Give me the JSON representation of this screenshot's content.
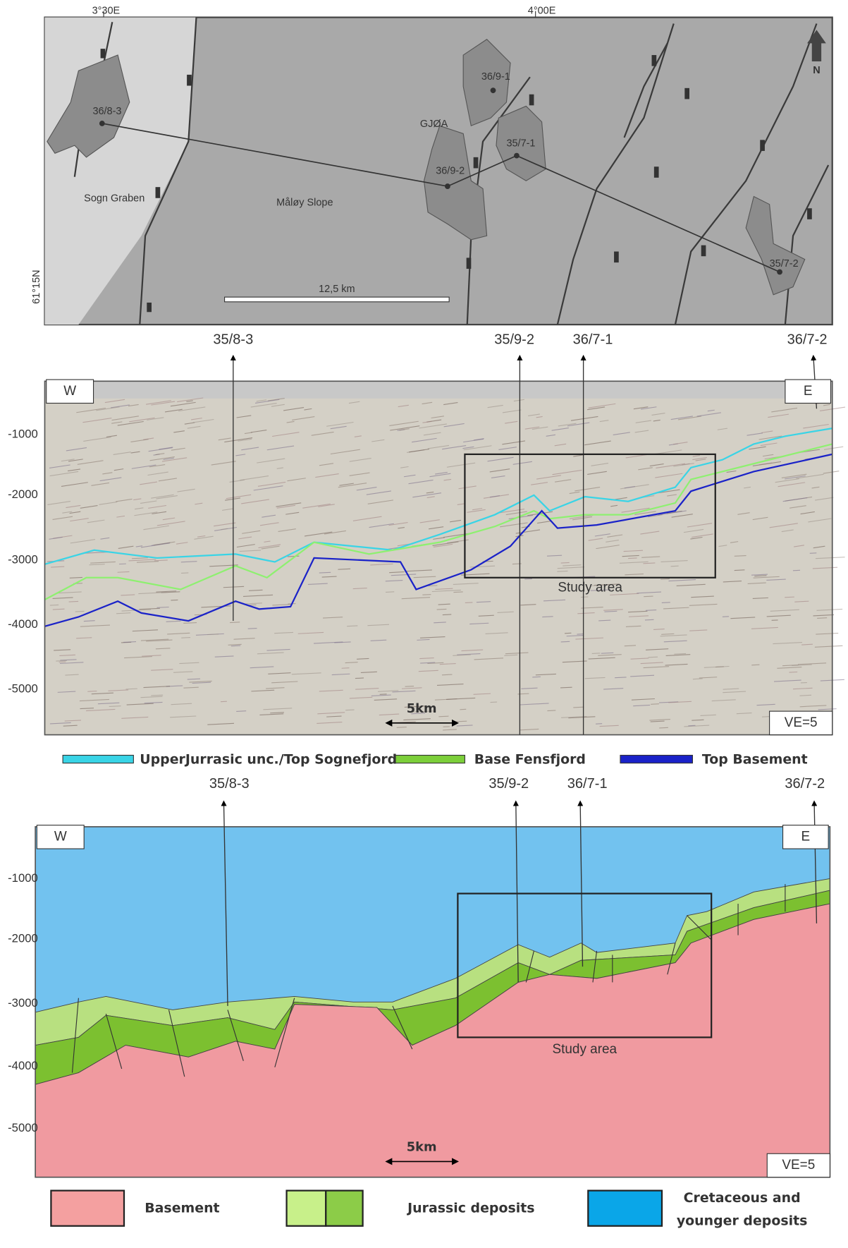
{
  "map": {
    "lon_labels": [
      "3°30E",
      "4°00E"
    ],
    "lat_label": "61°15N",
    "north": "N",
    "wells": [
      "36/8-3",
      "36/9-1",
      "36/9-2",
      "35/7-1",
      "35/7-2"
    ],
    "field": "GJØA",
    "areas": [
      "Sogn Graben",
      "Måløy Slope"
    ],
    "scale": "12,5 km"
  },
  "seismic": {
    "wells": [
      "35/8-3",
      "35/9-2",
      "36/7-1",
      "36/7-2"
    ],
    "west": "W",
    "east": "E",
    "depths": [
      "-1000",
      "-2000",
      "-3000",
      "-4000",
      "-5000"
    ],
    "study_area": "Study area",
    "scale": "5km",
    "ve": "VE=5"
  },
  "horizon_legend": [
    "UpperJurrasic unc./Top Sognefjord",
    "Base Fensfjord",
    "Top Basement"
  ],
  "section": {
    "wells": [
      "35/8-3",
      "35/9-2",
      "36/7-1",
      "36/7-2"
    ],
    "west": "W",
    "east": "E",
    "depths": [
      "-1000",
      "-2000",
      "-3000",
      "-4000",
      "-5000"
    ],
    "study_area": "Study area",
    "scale": "5km",
    "ve": "VE=5"
  },
  "unit_legend": {
    "basement": "Basement",
    "jurassic": "Jurassic deposits",
    "cretaceous": [
      "Cretaceous and",
      "younger deposits"
    ]
  }
}
